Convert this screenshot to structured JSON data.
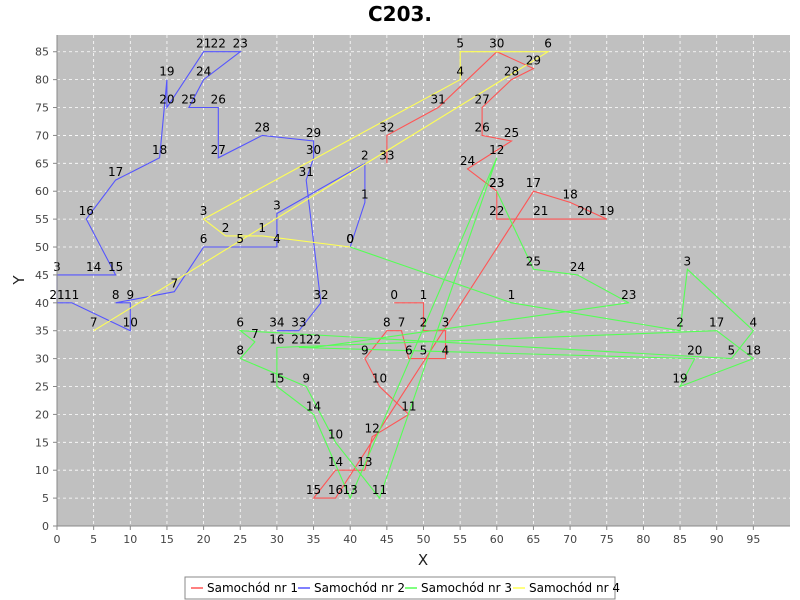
{
  "chart_data": {
    "type": "line",
    "title": "C203.",
    "xlabel": "X",
    "ylabel": "Y",
    "xlim": [
      0,
      100
    ],
    "ylim": [
      0,
      88
    ],
    "x_ticks": [
      0,
      5,
      10,
      15,
      20,
      25,
      30,
      35,
      40,
      45,
      50,
      55,
      60,
      65,
      70,
      75,
      80,
      85,
      90,
      95
    ],
    "y_ticks": [
      0,
      5,
      10,
      15,
      20,
      25,
      30,
      35,
      40,
      45,
      50,
      55,
      60,
      65,
      70,
      75,
      80,
      85
    ],
    "grid": true,
    "legend_position": "bottom",
    "series": [
      {
        "name": "Samochód nr 1",
        "color": "#ff5555",
        "points": [
          {
            "x": 46,
            "y": 40,
            "label": "0"
          },
          {
            "x": 50,
            "y": 40,
            "label": "1"
          },
          {
            "x": 50,
            "y": 35,
            "label": "2"
          },
          {
            "x": 53,
            "y": 35,
            "label": "3"
          },
          {
            "x": 53,
            "y": 30,
            "label": "4"
          },
          {
            "x": 50,
            "y": 30,
            "label": "5"
          },
          {
            "x": 48,
            "y": 30,
            "label": "6"
          },
          {
            "x": 47,
            "y": 35,
            "label": "7"
          },
          {
            "x": 45,
            "y": 35,
            "label": "8"
          },
          {
            "x": 42,
            "y": 30,
            "label": "9"
          },
          {
            "x": 44,
            "y": 25,
            "label": "10"
          },
          {
            "x": 48,
            "y": 20,
            "label": "11"
          },
          {
            "x": 43,
            "y": 16,
            "label": "12"
          },
          {
            "x": 42,
            "y": 10,
            "label": "13"
          },
          {
            "x": 38,
            "y": 10,
            "label": "14"
          },
          {
            "x": 35,
            "y": 5,
            "label": "15"
          },
          {
            "x": 38,
            "y": 5,
            "label": "16"
          },
          {
            "x": 65,
            "y": 60,
            "label": "17"
          },
          {
            "x": 70,
            "y": 58,
            "label": "18"
          },
          {
            "x": 75,
            "y": 55,
            "label": "19"
          },
          {
            "x": 72,
            "y": 55,
            "label": "20"
          },
          {
            "x": 66,
            "y": 55,
            "label": "21"
          },
          {
            "x": 60,
            "y": 55,
            "label": "22"
          },
          {
            "x": 60,
            "y": 60,
            "label": "23"
          },
          {
            "x": 56,
            "y": 64,
            "label": "24"
          },
          {
            "x": 62,
            "y": 69,
            "label": "25"
          },
          {
            "x": 58,
            "y": 70,
            "label": "26"
          },
          {
            "x": 58,
            "y": 75,
            "label": "27"
          },
          {
            "x": 62,
            "y": 80,
            "label": "28"
          },
          {
            "x": 65,
            "y": 82,
            "label": "29"
          },
          {
            "x": 60,
            "y": 85,
            "label": "30"
          },
          {
            "x": 52,
            "y": 75,
            "label": "31"
          },
          {
            "x": 45,
            "y": 70,
            "label": "32"
          },
          {
            "x": 45,
            "y": 65,
            "label": "33"
          }
        ]
      },
      {
        "name": "Samochód nr 2",
        "color": "#5555ff",
        "points": [
          {
            "x": 40,
            "y": 50,
            "label": "0"
          },
          {
            "x": 42,
            "y": 58,
            "label": "1"
          },
          {
            "x": 42,
            "y": 65,
            "label": "2"
          },
          {
            "x": 30,
            "y": 56,
            "label": "3"
          },
          {
            "x": 30,
            "y": 50,
            "label": "4"
          },
          {
            "x": 25,
            "y": 50,
            "label": "5"
          },
          {
            "x": 20,
            "y": 50,
            "label": "6"
          },
          {
            "x": 16,
            "y": 42,
            "label": "7"
          },
          {
            "x": 8,
            "y": 40,
            "label": "8"
          },
          {
            "x": 10,
            "y": 40,
            "label": "9"
          },
          {
            "x": 10,
            "y": 35,
            "label": "10"
          },
          {
            "x": 2,
            "y": 40,
            "label": "11"
          },
          {
            "x": 0,
            "y": 40,
            "label": "21"
          },
          {
            "x": 0,
            "y": 45,
            "label": "3"
          },
          {
            "x": 5,
            "y": 45,
            "label": "14"
          },
          {
            "x": 8,
            "y": 45,
            "label": "15"
          },
          {
            "x": 4,
            "y": 55,
            "label": "16"
          },
          {
            "x": 8,
            "y": 62,
            "label": "17"
          },
          {
            "x": 14,
            "y": 66,
            "label": "18"
          },
          {
            "x": 15,
            "y": 80,
            "label": "19"
          },
          {
            "x": 15,
            "y": 75,
            "label": "20"
          },
          {
            "x": 20,
            "y": 85,
            "label": "21"
          },
          {
            "x": 22,
            "y": 85,
            "label": "22"
          },
          {
            "x": 25,
            "y": 85,
            "label": "23"
          },
          {
            "x": 20,
            "y": 80,
            "label": "24"
          },
          {
            "x": 18,
            "y": 75,
            "label": "25"
          },
          {
            "x": 22,
            "y": 75,
            "label": "26"
          },
          {
            "x": 22,
            "y": 66,
            "label": "27"
          },
          {
            "x": 28,
            "y": 70,
            "label": "28"
          },
          {
            "x": 35,
            "y": 69,
            "label": "29"
          },
          {
            "x": 35,
            "y": 66,
            "label": "30"
          },
          {
            "x": 34,
            "y": 62,
            "label": "31"
          },
          {
            "x": 36,
            "y": 40,
            "label": "32"
          },
          {
            "x": 33,
            "y": 35,
            "label": "33"
          },
          {
            "x": 30,
            "y": 35,
            "label": "34"
          }
        ]
      },
      {
        "name": "Samochód nr 3",
        "color": "#55ff55",
        "points": [
          {
            "x": 40,
            "y": 50,
            "label": "0"
          },
          {
            "x": 62,
            "y": 40,
            "label": "1"
          },
          {
            "x": 85,
            "y": 35,
            "label": "2"
          },
          {
            "x": 86,
            "y": 46,
            "label": "3"
          },
          {
            "x": 95,
            "y": 35,
            "label": "4"
          },
          {
            "x": 92,
            "y": 30,
            "label": "5"
          },
          {
            "x": 25,
            "y": 35,
            "label": "6"
          },
          {
            "x": 27,
            "y": 33,
            "label": "7"
          },
          {
            "x": 25,
            "y": 30,
            "label": "8"
          },
          {
            "x": 34,
            "y": 25,
            "label": "9"
          },
          {
            "x": 38,
            "y": 15,
            "label": "10"
          },
          {
            "x": 44,
            "y": 5,
            "label": "11"
          },
          {
            "x": 60,
            "y": 66,
            "label": "12"
          },
          {
            "x": 40,
            "y": 5,
            "label": "13"
          },
          {
            "x": 35,
            "y": 20,
            "label": "14"
          },
          {
            "x": 30,
            "y": 25,
            "label": "15"
          },
          {
            "x": 30,
            "y": 32,
            "label": "16"
          },
          {
            "x": 90,
            "y": 35,
            "label": "17"
          },
          {
            "x": 95,
            "y": 30,
            "label": "18"
          },
          {
            "x": 85,
            "y": 25,
            "label": "19"
          },
          {
            "x": 87,
            "y": 30,
            "label": "20"
          },
          {
            "x": 33,
            "y": 32,
            "label": "21"
          },
          {
            "x": 35,
            "y": 32,
            "label": "22"
          },
          {
            "x": 78,
            "y": 40,
            "label": "23"
          },
          {
            "x": 71,
            "y": 45,
            "label": "24"
          },
          {
            "x": 65,
            "y": 46,
            "label": "25"
          },
          {
            "x": 60,
            "y": 60,
            "label": "23"
          }
        ]
      },
      {
        "name": "Samochód nr 4",
        "color": "#ffff55",
        "points": [
          {
            "x": 40,
            "y": 50,
            "label": "0"
          },
          {
            "x": 28,
            "y": 52,
            "label": "1"
          },
          {
            "x": 23,
            "y": 52,
            "label": "2"
          },
          {
            "x": 20,
            "y": 55,
            "label": "3"
          },
          {
            "x": 55,
            "y": 80,
            "label": "4"
          },
          {
            "x": 55,
            "y": 85,
            "label": "5"
          },
          {
            "x": 67,
            "y": 85,
            "label": "6"
          },
          {
            "x": 5,
            "y": 35,
            "label": "7"
          }
        ]
      }
    ]
  }
}
